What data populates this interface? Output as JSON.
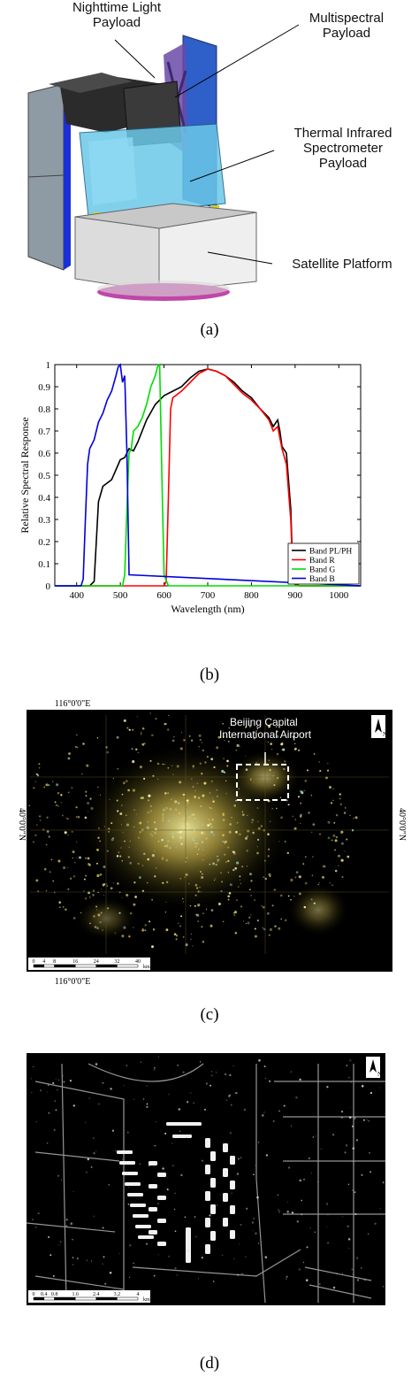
{
  "panel_a": {
    "labels": {
      "nighttime": "Nighttime Light\nPayload",
      "multispectral": "Multispectral\nPayload",
      "thermal": "Thermal Infrared\nSpectrometer\nPayload",
      "platform": "Satellite Platform"
    },
    "caption": "(a)"
  },
  "chart_data": {
    "type": "line",
    "xlabel": "Wavelength (nm)",
    "ylabel": "Relative Spectral Response",
    "xlim": [
      350,
      1050
    ],
    "ylim": [
      0,
      1
    ],
    "xticks": [
      "400",
      "500",
      "600",
      "700",
      "800",
      "900",
      "1000"
    ],
    "yticks": [
      "0",
      "0.1",
      "0.2",
      "0.3",
      "0.4",
      "0.5",
      "0.6",
      "0.7",
      "0.8",
      "0.9",
      "1"
    ],
    "legend_position": "bottom-right",
    "grid": false,
    "series": [
      {
        "name": "Band PL/PH",
        "color": "#000000",
        "x": [
          350,
          430,
          440,
          450,
          460,
          480,
          500,
          510,
          520,
          530,
          540,
          560,
          580,
          600,
          620,
          640,
          660,
          680,
          700,
          720,
          740,
          760,
          780,
          800,
          820,
          840,
          850,
          860,
          865,
          870,
          880,
          890,
          895,
          900,
          910,
          1050
        ],
        "y": [
          0,
          0,
          0.02,
          0.38,
          0.45,
          0.48,
          0.57,
          0.58,
          0.62,
          0.61,
          0.65,
          0.75,
          0.82,
          0.86,
          0.88,
          0.9,
          0.94,
          0.97,
          0.98,
          0.97,
          0.95,
          0.92,
          0.88,
          0.85,
          0.8,
          0.76,
          0.72,
          0.75,
          0.7,
          0.63,
          0.6,
          0.35,
          0.05,
          0.01,
          0,
          0
        ]
      },
      {
        "name": "Band R",
        "color": "#ff0000",
        "x": [
          350,
          600,
          605,
          610,
          615,
          620,
          640,
          660,
          680,
          700,
          720,
          740,
          760,
          780,
          800,
          820,
          840,
          850,
          860,
          870,
          880,
          890,
          895,
          900,
          910,
          1050
        ],
        "y": [
          0,
          0,
          0.02,
          0.4,
          0.8,
          0.85,
          0.88,
          0.92,
          0.96,
          0.98,
          0.97,
          0.95,
          0.91,
          0.87,
          0.84,
          0.8,
          0.75,
          0.7,
          0.72,
          0.62,
          0.55,
          0.3,
          0.05,
          0.01,
          0,
          0
        ]
      },
      {
        "name": "Band G",
        "color": "#00dd00",
        "x": [
          350,
          505,
          510,
          515,
          520,
          525,
          530,
          540,
          550,
          560,
          570,
          580,
          585,
          590,
          595,
          600,
          610,
          1050
        ],
        "y": [
          0,
          0,
          0.05,
          0.35,
          0.6,
          0.62,
          0.7,
          0.72,
          0.76,
          0.82,
          0.9,
          0.95,
          0.99,
          1,
          0.5,
          0.05,
          0,
          0
        ]
      },
      {
        "name": "Band B",
        "color": "#0000dd",
        "x": [
          350,
          410,
          415,
          420,
          425,
          430,
          440,
          450,
          460,
          470,
          480,
          490,
          495,
          500,
          505,
          510,
          515,
          520,
          1050
        ],
        "y": [
          0,
          0,
          0.03,
          0.3,
          0.55,
          0.62,
          0.66,
          0.74,
          0.78,
          0.84,
          0.88,
          0.95,
          0.99,
          1,
          0.92,
          0.95,
          0.6,
          0.05,
          0
        ]
      }
    ],
    "caption": "(b)"
  },
  "panel_c": {
    "lon_top": "116°0'0\"E",
    "lon_bottom": "116°0'0\"E",
    "lat_left": "40°0'0\"N",
    "lat_right": "40°0'0\"N",
    "airport_label": "Beijing Capital\nInternational Airport",
    "scale_ticks": [
      "0",
      "4",
      "8",
      "16",
      "24",
      "32",
      "40"
    ],
    "scale_unit": "km",
    "north_label": "N",
    "caption": "(c)"
  },
  "panel_d": {
    "scale_ticks": [
      "0",
      "0.4",
      "0.8",
      "1.6",
      "2.4",
      "3.2",
      "4"
    ],
    "scale_unit": "km",
    "north_label": "N",
    "caption": "(d)"
  }
}
